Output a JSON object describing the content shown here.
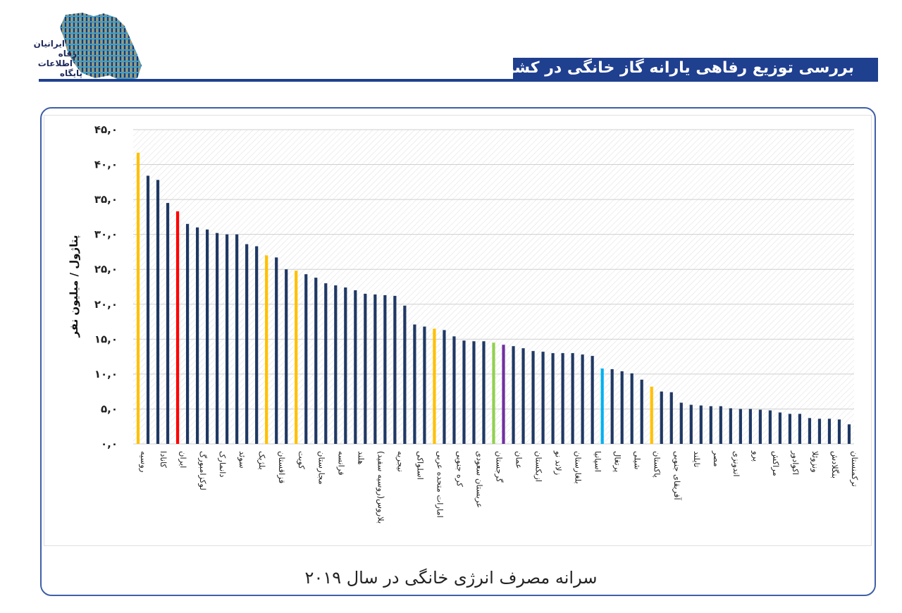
{
  "header": {
    "title": "بررسی توزیع رفاهی یارانه گاز خانگی در کشور",
    "logo_lines": [
      "ایرانیان",
      "رفاه",
      "اطلاعات",
      "پایگاه"
    ],
    "accent_color": "#1f3f8f"
  },
  "caption": "سرانه مصرف انرژی خانگی در سال ۲۰۱۹",
  "chart_data": {
    "type": "bar",
    "title": "",
    "xlabel": "",
    "ylabel": "پتاژول / میلیون نفر",
    "ylim": [
      0,
      45
    ],
    "yticks": [
      "۰,۰",
      "۵,۰",
      "۱۰,۰",
      "۱۵,۰",
      "۲۰,۰",
      "۲۵,۰",
      "۳۰,۰",
      "۳۵,۰",
      "۴۰,۰",
      "۴۵,۰"
    ],
    "ytick_values": [
      0,
      5,
      10,
      15,
      20,
      25,
      30,
      35,
      40,
      45
    ],
    "grid": true,
    "default_color": "#1f3864",
    "labeled_every": 2,
    "categories": [
      "روسیه",
      "",
      "کانادا",
      "",
      "ایران",
      "",
      "لوکزامبورگ",
      "",
      "دانمارک",
      "",
      "سوئد",
      "",
      "بلژیک",
      "",
      "قزاقستان",
      "",
      "کویت",
      "",
      "مجارستان",
      "",
      "فرانسه",
      "",
      "هلند",
      "",
      "بلاروس(روسیه سفید)",
      "",
      "نیجریه",
      "",
      "اسلواکی",
      "",
      "امارات متحده عربی",
      "",
      "کره جنوبی",
      "",
      "عربستان سعودی",
      "",
      "گرجستان",
      "",
      "عمان",
      "",
      "ازبکستان",
      "",
      "زلاند نو",
      "",
      "بلغارستان",
      "",
      "اسپانیا",
      "",
      "پرتغال",
      "",
      "شیلی",
      "",
      "پاکستان",
      "",
      "آفریقای جنوبی",
      "",
      "تایلند",
      "",
      "مصر",
      "",
      "اندونزی",
      "",
      "پرو",
      "",
      "مراکش",
      "",
      "اکوادور",
      "",
      "ونزوئلا",
      "",
      "بنگلادش",
      "",
      "ترکمنستان"
    ],
    "values": [
      41.7,
      38.4,
      37.8,
      34.5,
      33.3,
      31.5,
      31.0,
      30.7,
      30.2,
      30.0,
      30.0,
      28.6,
      28.3,
      27.0,
      26.7,
      25.0,
      24.8,
      24.3,
      23.8,
      23.0,
      22.7,
      22.4,
      22.0,
      21.5,
      21.4,
      21.3,
      21.2,
      19.8,
      17.1,
      16.8,
      16.5,
      16.3,
      15.4,
      14.8,
      14.7,
      14.7,
      14.5,
      14.2,
      14.0,
      13.7,
      13.3,
      13.2,
      13.0,
      13.0,
      13.0,
      12.8,
      12.6,
      10.8,
      10.7,
      10.4,
      10.1,
      9.2,
      8.2,
      7.5,
      7.4,
      5.9,
      5.6,
      5.5,
      5.4,
      5.4,
      5.1,
      5.0,
      5.0,
      4.9,
      4.8,
      4.5,
      4.3,
      4.3,
      3.7,
      3.6,
      3.6,
      3.5,
      2.8
    ],
    "highlight_colors": {
      "0": "#ffc000",
      "4": "#ff0000",
      "13": "#ffc000",
      "16": "#ffc000",
      "30": "#ffc000",
      "36": "#92d050",
      "37": "#7030a0",
      "47": "#00b0f0",
      "52": "#ffc000"
    }
  }
}
